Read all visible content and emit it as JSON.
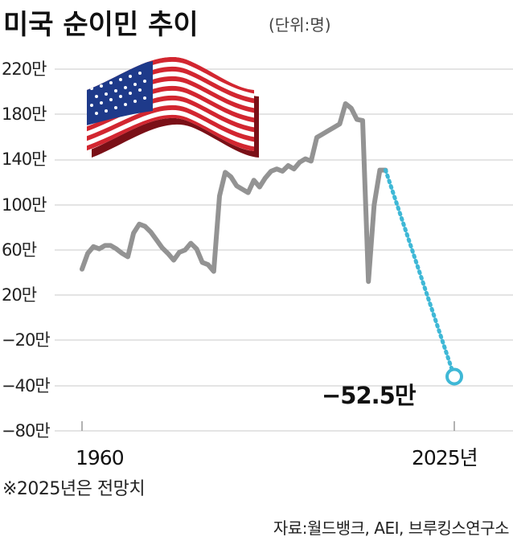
{
  "header": {
    "title": "미국 순이민 추이",
    "unit": "(단위:명)"
  },
  "footnote": "※2025년은 전망치",
  "source": "자료:월드뱅크, AEI, 브루킹스연구소",
  "colors": {
    "line": "#939393",
    "projection": "#3fb8d6",
    "grid": "#c8c8c8"
  },
  "icons": [
    "us-flag-icon"
  ],
  "chart_data": {
    "type": "line",
    "title": "미국 순이민 추이",
    "unit": "(단위:명)",
    "y_ticks": [
      "220만",
      "180만",
      "140만",
      "100만",
      "60만",
      "20만",
      "−20만",
      "−40만",
      "−80만"
    ],
    "x_ticks": [
      "1960",
      "2025년"
    ],
    "grid": true,
    "series": [
      {
        "style": "solid",
        "points": [
          [
            1960,
            43
          ],
          [
            1961,
            57
          ],
          [
            1962,
            63
          ],
          [
            1963,
            61
          ],
          [
            1964,
            64
          ],
          [
            1965,
            64
          ],
          [
            1966,
            61
          ],
          [
            1967,
            57
          ],
          [
            1968,
            54
          ],
          [
            1969,
            75
          ],
          [
            1970,
            83
          ],
          [
            1971,
            81
          ],
          [
            1972,
            76
          ],
          [
            1973,
            69
          ],
          [
            1974,
            62
          ],
          [
            1975,
            57
          ],
          [
            1976,
            51
          ],
          [
            1977,
            58
          ],
          [
            1978,
            60
          ],
          [
            1979,
            66
          ],
          [
            1980,
            61
          ],
          [
            1981,
            49
          ],
          [
            1982,
            47
          ],
          [
            1983,
            41
          ],
          [
            1984,
            108
          ],
          [
            1985,
            129
          ],
          [
            1986,
            125
          ],
          [
            1987,
            117
          ],
          [
            1988,
            114
          ],
          [
            1989,
            111
          ],
          [
            1990,
            122
          ],
          [
            1991,
            116
          ],
          [
            1992,
            124
          ],
          [
            1993,
            130
          ],
          [
            1994,
            132
          ],
          [
            1995,
            130
          ],
          [
            1996,
            135
          ],
          [
            1997,
            132
          ],
          [
            1998,
            138
          ],
          [
            1999,
            141
          ],
          [
            2000,
            139
          ],
          [
            2001,
            160
          ],
          [
            2002,
            163
          ],
          [
            2003,
            166
          ],
          [
            2004,
            169
          ],
          [
            2005,
            172
          ],
          [
            2006,
            190
          ],
          [
            2007,
            186
          ],
          [
            2008,
            176
          ],
          [
            2009,
            175
          ],
          [
            2010,
            32
          ],
          [
            2011,
            100
          ],
          [
            2012,
            131
          ],
          [
            2013,
            131
          ]
        ]
      },
      {
        "style": "dotted",
        "points": [
          [
            2013,
            131
          ],
          [
            2025,
            -52.5
          ]
        ]
      }
    ],
    "annotations": [
      {
        "x": 2025,
        "y": -52.5,
        "text": "−52.5만"
      }
    ]
  }
}
